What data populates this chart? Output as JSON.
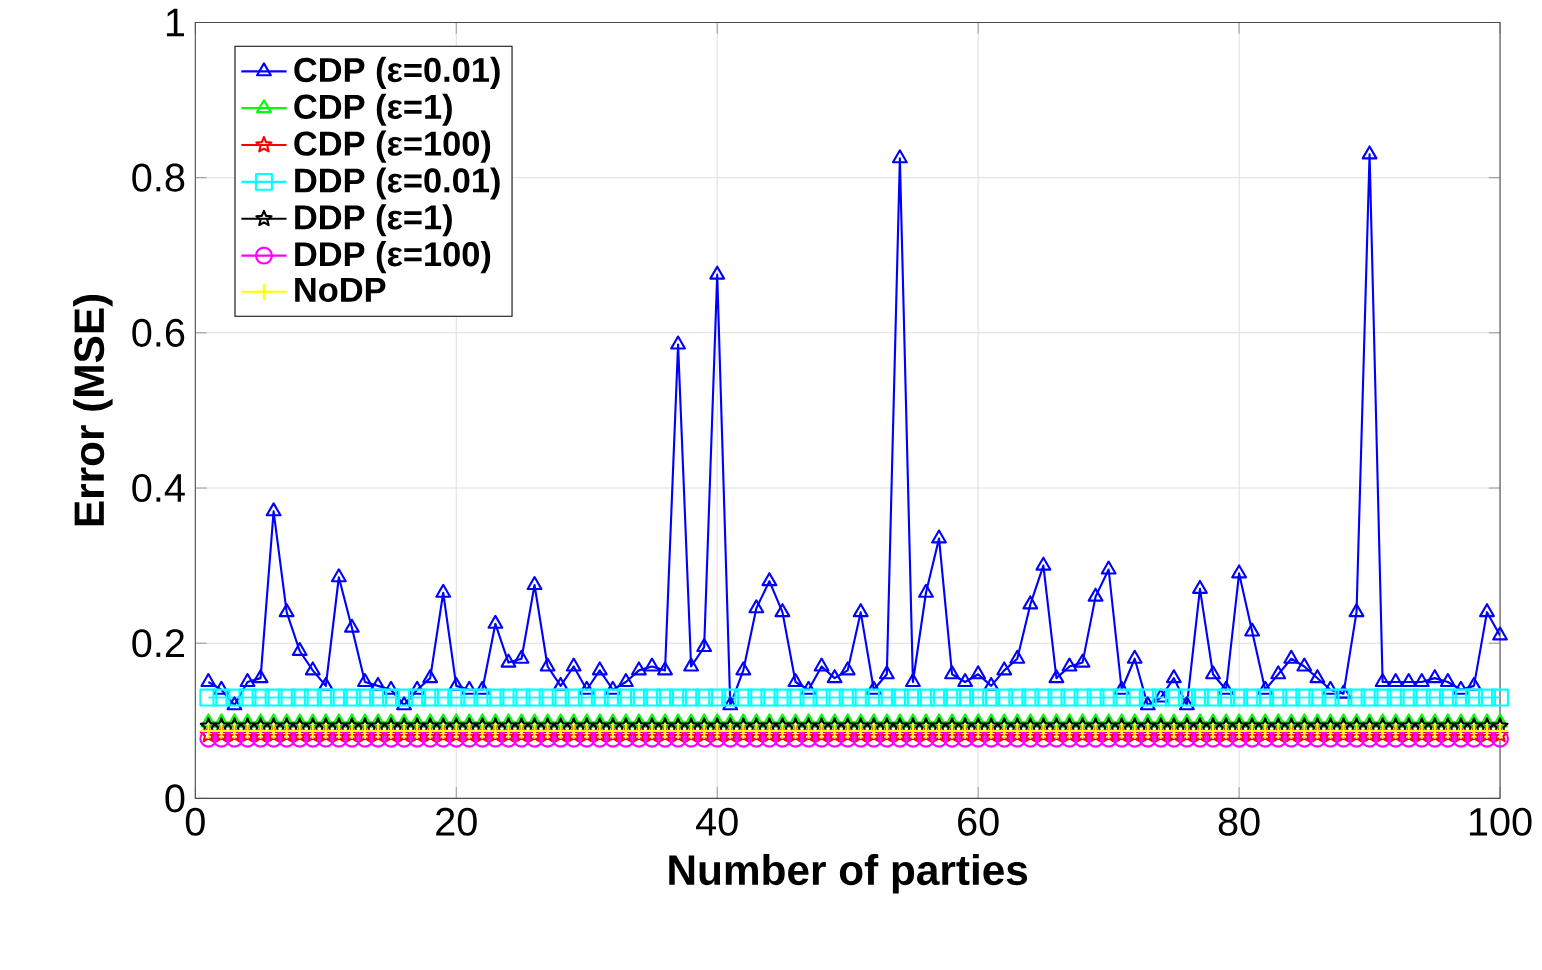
{
  "chart_data": {
    "type": "line",
    "xlabel": "Number of parties",
    "ylabel": "Error (MSE)",
    "xlim": [
      0,
      100
    ],
    "ylim": [
      0,
      1
    ],
    "xticks": [
      0,
      20,
      40,
      60,
      80,
      100
    ],
    "yticks": [
      0,
      0.2,
      0.4,
      0.6,
      0.8,
      1
    ],
    "grid": true,
    "legend": "top left",
    "x": [
      1,
      2,
      3,
      4,
      5,
      6,
      7,
      8,
      9,
      10,
      11,
      12,
      13,
      14,
      15,
      16,
      17,
      18,
      19,
      20,
      21,
      22,
      23,
      24,
      25,
      26,
      27,
      28,
      29,
      30,
      31,
      32,
      33,
      34,
      35,
      36,
      37,
      38,
      39,
      40,
      41,
      42,
      43,
      44,
      45,
      46,
      47,
      48,
      49,
      50,
      51,
      52,
      53,
      54,
      55,
      56,
      57,
      58,
      59,
      60,
      61,
      62,
      63,
      64,
      65,
      66,
      67,
      68,
      69,
      70,
      71,
      72,
      73,
      74,
      75,
      76,
      77,
      78,
      79,
      80,
      81,
      82,
      83,
      84,
      85,
      86,
      87,
      88,
      89,
      90,
      91,
      92,
      93,
      94,
      95,
      96,
      97,
      98,
      99,
      100
    ],
    "series": [
      {
        "name": "CDP (ε=0.01)",
        "color": "#0000ff",
        "marker": "triangle",
        "values": [
          0.15,
          0.14,
          0.12,
          0.15,
          0.155,
          0.37,
          0.24,
          0.19,
          0.165,
          0.145,
          0.285,
          0.22,
          0.15,
          0.145,
          0.14,
          0.12,
          0.14,
          0.155,
          0.265,
          0.145,
          0.14,
          0.14,
          0.225,
          0.175,
          0.18,
          0.275,
          0.17,
          0.145,
          0.17,
          0.14,
          0.165,
          0.14,
          0.15,
          0.165,
          0.17,
          0.165,
          0.585,
          0.17,
          0.195,
          0.675,
          0.12,
          0.165,
          0.245,
          0.28,
          0.24,
          0.15,
          0.14,
          0.17,
          0.155,
          0.165,
          0.24,
          0.14,
          0.16,
          0.825,
          0.15,
          0.265,
          0.335,
          0.16,
          0.15,
          0.16,
          0.145,
          0.165,
          0.18,
          0.25,
          0.3,
          0.155,
          0.17,
          0.175,
          0.26,
          0.295,
          0.14,
          0.18,
          0.12,
          0.13,
          0.155,
          0.12,
          0.27,
          0.16,
          0.14,
          0.29,
          0.215,
          0.14,
          0.16,
          0.18,
          0.17,
          0.155,
          0.14,
          0.135,
          0.24,
          0.83,
          0.15,
          0.15,
          0.15,
          0.15,
          0.155,
          0.15,
          0.14,
          0.145,
          0.24,
          0.21
        ]
      },
      {
        "name": "CDP (ε=1)",
        "color": "#00ff00",
        "marker": "triangle",
        "values": [
          0.098,
          0.098,
          0.098,
          0.098,
          0.098,
          0.098,
          0.098,
          0.098,
          0.098,
          0.098,
          0.098,
          0.098,
          0.098,
          0.098,
          0.098,
          0.098,
          0.098,
          0.098,
          0.098,
          0.098,
          0.098,
          0.098,
          0.098,
          0.098,
          0.098,
          0.098,
          0.098,
          0.098,
          0.098,
          0.098,
          0.098,
          0.098,
          0.098,
          0.098,
          0.098,
          0.098,
          0.098,
          0.098,
          0.098,
          0.098,
          0.098,
          0.098,
          0.098,
          0.098,
          0.098,
          0.098,
          0.098,
          0.098,
          0.098,
          0.098,
          0.098,
          0.098,
          0.098,
          0.098,
          0.098,
          0.098,
          0.098,
          0.098,
          0.098,
          0.098,
          0.098,
          0.098,
          0.098,
          0.098,
          0.098,
          0.098,
          0.098,
          0.098,
          0.098,
          0.098,
          0.098,
          0.098,
          0.098,
          0.098,
          0.098,
          0.098,
          0.098,
          0.098,
          0.098,
          0.098,
          0.098,
          0.098,
          0.098,
          0.098,
          0.098,
          0.098,
          0.098,
          0.098,
          0.098,
          0.098,
          0.098,
          0.098,
          0.098,
          0.098,
          0.098,
          0.098,
          0.098,
          0.098,
          0.098,
          0.098
        ]
      },
      {
        "name": "CDP (ε=100)",
        "color": "#ff0000",
        "marker": "star",
        "values": [
          0.082,
          0.082,
          0.082,
          0.082,
          0.082,
          0.082,
          0.082,
          0.082,
          0.082,
          0.082,
          0.082,
          0.082,
          0.082,
          0.082,
          0.082,
          0.082,
          0.082,
          0.082,
          0.082,
          0.082,
          0.082,
          0.082,
          0.082,
          0.082,
          0.082,
          0.082,
          0.082,
          0.082,
          0.082,
          0.082,
          0.082,
          0.082,
          0.082,
          0.082,
          0.082,
          0.082,
          0.082,
          0.082,
          0.082,
          0.082,
          0.082,
          0.082,
          0.082,
          0.082,
          0.082,
          0.082,
          0.082,
          0.082,
          0.082,
          0.082,
          0.082,
          0.082,
          0.082,
          0.082,
          0.082,
          0.082,
          0.082,
          0.082,
          0.082,
          0.082,
          0.082,
          0.082,
          0.082,
          0.082,
          0.082,
          0.082,
          0.082,
          0.082,
          0.082,
          0.082,
          0.082,
          0.082,
          0.082,
          0.082,
          0.082,
          0.082,
          0.082,
          0.082,
          0.082,
          0.082,
          0.082,
          0.082,
          0.082,
          0.082,
          0.082,
          0.082,
          0.082,
          0.082,
          0.082,
          0.082,
          0.082,
          0.082,
          0.082,
          0.082,
          0.082,
          0.082,
          0.082,
          0.082,
          0.082,
          0.082
        ]
      },
      {
        "name": "DDP (ε=0.01)",
        "color": "#00ffff",
        "marker": "square",
        "values": [
          0.13,
          0.13,
          0.13,
          0.13,
          0.13,
          0.13,
          0.13,
          0.13,
          0.13,
          0.13,
          0.13,
          0.13,
          0.13,
          0.13,
          0.13,
          0.13,
          0.13,
          0.13,
          0.13,
          0.13,
          0.13,
          0.13,
          0.13,
          0.13,
          0.13,
          0.13,
          0.13,
          0.13,
          0.13,
          0.13,
          0.13,
          0.13,
          0.13,
          0.13,
          0.13,
          0.13,
          0.13,
          0.13,
          0.13,
          0.13,
          0.13,
          0.13,
          0.13,
          0.13,
          0.13,
          0.13,
          0.13,
          0.13,
          0.13,
          0.13,
          0.13,
          0.13,
          0.13,
          0.13,
          0.13,
          0.13,
          0.13,
          0.13,
          0.13,
          0.13,
          0.13,
          0.13,
          0.13,
          0.13,
          0.13,
          0.13,
          0.13,
          0.13,
          0.13,
          0.13,
          0.13,
          0.13,
          0.13,
          0.13,
          0.13,
          0.13,
          0.13,
          0.13,
          0.13,
          0.13,
          0.13,
          0.13,
          0.13,
          0.13,
          0.13,
          0.13,
          0.13,
          0.13,
          0.13,
          0.13,
          0.13,
          0.13,
          0.13,
          0.13,
          0.13,
          0.13,
          0.13,
          0.13,
          0.13,
          0.13
        ]
      },
      {
        "name": "DDP (ε=1)",
        "color": "#000000",
        "marker": "star",
        "values": [
          0.093,
          0.093,
          0.093,
          0.093,
          0.093,
          0.093,
          0.093,
          0.093,
          0.093,
          0.093,
          0.093,
          0.093,
          0.093,
          0.093,
          0.093,
          0.093,
          0.093,
          0.093,
          0.093,
          0.093,
          0.093,
          0.093,
          0.093,
          0.093,
          0.093,
          0.093,
          0.093,
          0.093,
          0.093,
          0.093,
          0.093,
          0.093,
          0.093,
          0.093,
          0.093,
          0.093,
          0.093,
          0.093,
          0.093,
          0.093,
          0.093,
          0.093,
          0.093,
          0.093,
          0.093,
          0.093,
          0.093,
          0.093,
          0.093,
          0.093,
          0.093,
          0.093,
          0.093,
          0.093,
          0.093,
          0.093,
          0.093,
          0.093,
          0.093,
          0.093,
          0.093,
          0.093,
          0.093,
          0.093,
          0.093,
          0.093,
          0.093,
          0.093,
          0.093,
          0.093,
          0.093,
          0.093,
          0.093,
          0.093,
          0.093,
          0.093,
          0.093,
          0.093,
          0.093,
          0.093,
          0.093,
          0.093,
          0.093,
          0.093,
          0.093,
          0.093,
          0.093,
          0.093,
          0.093,
          0.093,
          0.093,
          0.093,
          0.093,
          0.093,
          0.093,
          0.093,
          0.093,
          0.093,
          0.093,
          0.093
        ]
      },
      {
        "name": "DDP (ε=100)",
        "color": "#ff00ff",
        "marker": "circle",
        "values": [
          0.077,
          0.077,
          0.077,
          0.077,
          0.077,
          0.077,
          0.077,
          0.077,
          0.077,
          0.077,
          0.077,
          0.077,
          0.077,
          0.077,
          0.077,
          0.077,
          0.077,
          0.077,
          0.077,
          0.077,
          0.077,
          0.077,
          0.077,
          0.077,
          0.077,
          0.077,
          0.077,
          0.077,
          0.077,
          0.077,
          0.077,
          0.077,
          0.077,
          0.077,
          0.077,
          0.077,
          0.077,
          0.077,
          0.077,
          0.077,
          0.077,
          0.077,
          0.077,
          0.077,
          0.077,
          0.077,
          0.077,
          0.077,
          0.077,
          0.077,
          0.077,
          0.077,
          0.077,
          0.077,
          0.077,
          0.077,
          0.077,
          0.077,
          0.077,
          0.077,
          0.077,
          0.077,
          0.077,
          0.077,
          0.077,
          0.077,
          0.077,
          0.077,
          0.077,
          0.077,
          0.077,
          0.077,
          0.077,
          0.077,
          0.077,
          0.077,
          0.077,
          0.077,
          0.077,
          0.077,
          0.077,
          0.077,
          0.077,
          0.077,
          0.077,
          0.077,
          0.077,
          0.077,
          0.077,
          0.077,
          0.077,
          0.077,
          0.077,
          0.077,
          0.077,
          0.077,
          0.077,
          0.077,
          0.077,
          0.077
        ]
      },
      {
        "name": "NoDP",
        "color": "#ffff00",
        "marker": "cross",
        "values": [
          0.087,
          0.087,
          0.087,
          0.087,
          0.087,
          0.087,
          0.087,
          0.087,
          0.087,
          0.087,
          0.087,
          0.087,
          0.087,
          0.087,
          0.087,
          0.087,
          0.087,
          0.087,
          0.087,
          0.087,
          0.087,
          0.087,
          0.087,
          0.087,
          0.087,
          0.087,
          0.087,
          0.087,
          0.087,
          0.087,
          0.087,
          0.087,
          0.087,
          0.087,
          0.087,
          0.087,
          0.087,
          0.087,
          0.087,
          0.087,
          0.087,
          0.087,
          0.087,
          0.087,
          0.087,
          0.087,
          0.087,
          0.087,
          0.087,
          0.087,
          0.087,
          0.087,
          0.087,
          0.087,
          0.087,
          0.087,
          0.087,
          0.087,
          0.087,
          0.087,
          0.087,
          0.087,
          0.087,
          0.087,
          0.087,
          0.087,
          0.087,
          0.087,
          0.087,
          0.087,
          0.087,
          0.087,
          0.087,
          0.087,
          0.087,
          0.087,
          0.087,
          0.087,
          0.087,
          0.087,
          0.087,
          0.087,
          0.087,
          0.087,
          0.087,
          0.087,
          0.087,
          0.087,
          0.087,
          0.087,
          0.087,
          0.087,
          0.087,
          0.087,
          0.087,
          0.087,
          0.087,
          0.087,
          0.087,
          0.087
        ]
      }
    ]
  }
}
